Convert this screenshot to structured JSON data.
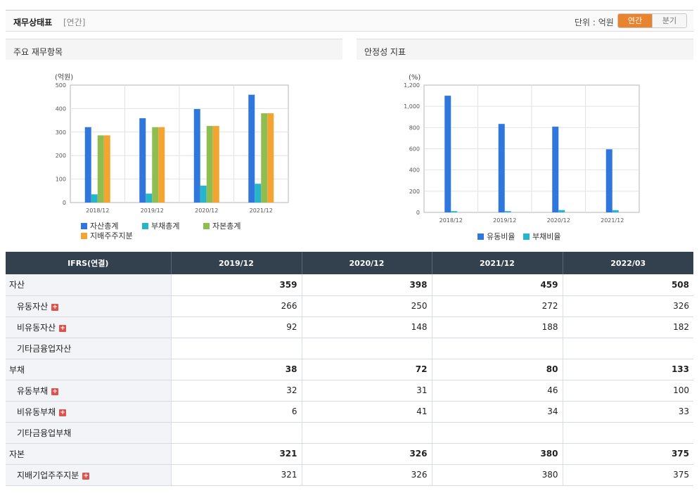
{
  "header": {
    "title": "재무상태표",
    "period_tag": "[연간]",
    "unit_label": "단위 : 억원",
    "tabs": [
      "연간",
      "분기"
    ]
  },
  "charts": {
    "left_title": "주요 재무항목",
    "right_title": "안정성 지표"
  },
  "chart_data": [
    {
      "type": "bar",
      "title": "주요 재무항목",
      "ylabel": "(억원)",
      "categories": [
        "2018/12",
        "2019/12",
        "2020/12",
        "2021/12"
      ],
      "ylim": [
        0,
        500
      ],
      "yticks": [
        "0",
        "100",
        "200",
        "300",
        "400",
        "500"
      ],
      "grid": true,
      "legend_position": "bottom",
      "series": [
        {
          "name": "자산총계",
          "color": "#2f77dc",
          "values": [
            321,
            359,
            398,
            459
          ]
        },
        {
          "name": "부채총계",
          "color": "#26b5c9",
          "values": [
            35,
            38,
            72,
            80
          ]
        },
        {
          "name": "자본총계",
          "color": "#8fbd50",
          "values": [
            286,
            321,
            326,
            380
          ]
        },
        {
          "name": "지배주주지분",
          "color": "#f4a430",
          "values": [
            286,
            321,
            326,
            380
          ]
        }
      ]
    },
    {
      "type": "bar",
      "title": "안정성 지표",
      "ylabel": "(%)",
      "categories": [
        "2018/12",
        "2019/12",
        "2020/12",
        "2021/12"
      ],
      "ylim": [
        0,
        1200
      ],
      "yticks": [
        "0",
        "200",
        "400",
        "600",
        "800",
        "1,000",
        "1,200"
      ],
      "grid": true,
      "legend_position": "bottom",
      "series": [
        {
          "name": "유동비율",
          "color": "#2f77dc",
          "values": [
            1100,
            834,
            808,
            595
          ]
        },
        {
          "name": "부채비율",
          "color": "#26b5c9",
          "values": [
            12,
            12,
            22,
            21
          ]
        }
      ]
    }
  ],
  "table": {
    "corner": "IFRS(연결)",
    "columns": [
      "2019/12",
      "2020/12",
      "2021/12",
      "2022/03"
    ],
    "rows": [
      {
        "label": "자산",
        "level": "main",
        "expand": false,
        "values": [
          "359",
          "398",
          "459",
          "508"
        ]
      },
      {
        "label": "유동자산",
        "level": "sub",
        "expand": true,
        "values": [
          "266",
          "250",
          "272",
          "326"
        ]
      },
      {
        "label": "비유동자산",
        "level": "sub",
        "expand": true,
        "values": [
          "92",
          "148",
          "188",
          "182"
        ]
      },
      {
        "label": "기타금융업자산",
        "level": "sub",
        "expand": false,
        "values": [
          "",
          "",
          "",
          ""
        ]
      },
      {
        "label": "부채",
        "level": "main",
        "expand": false,
        "values": [
          "38",
          "72",
          "80",
          "133"
        ]
      },
      {
        "label": "유동부채",
        "level": "sub",
        "expand": true,
        "values": [
          "32",
          "31",
          "46",
          "100"
        ]
      },
      {
        "label": "비유동부채",
        "level": "sub",
        "expand": true,
        "values": [
          "6",
          "41",
          "34",
          "33"
        ]
      },
      {
        "label": "기타금융업부채",
        "level": "sub",
        "expand": false,
        "values": [
          "",
          "",
          "",
          ""
        ]
      },
      {
        "label": "자본",
        "level": "main",
        "expand": false,
        "values": [
          "321",
          "326",
          "380",
          "375"
        ]
      },
      {
        "label": "지배기업주주지분",
        "level": "sub",
        "expand": true,
        "values": [
          "321",
          "326",
          "380",
          "375"
        ]
      }
    ]
  }
}
